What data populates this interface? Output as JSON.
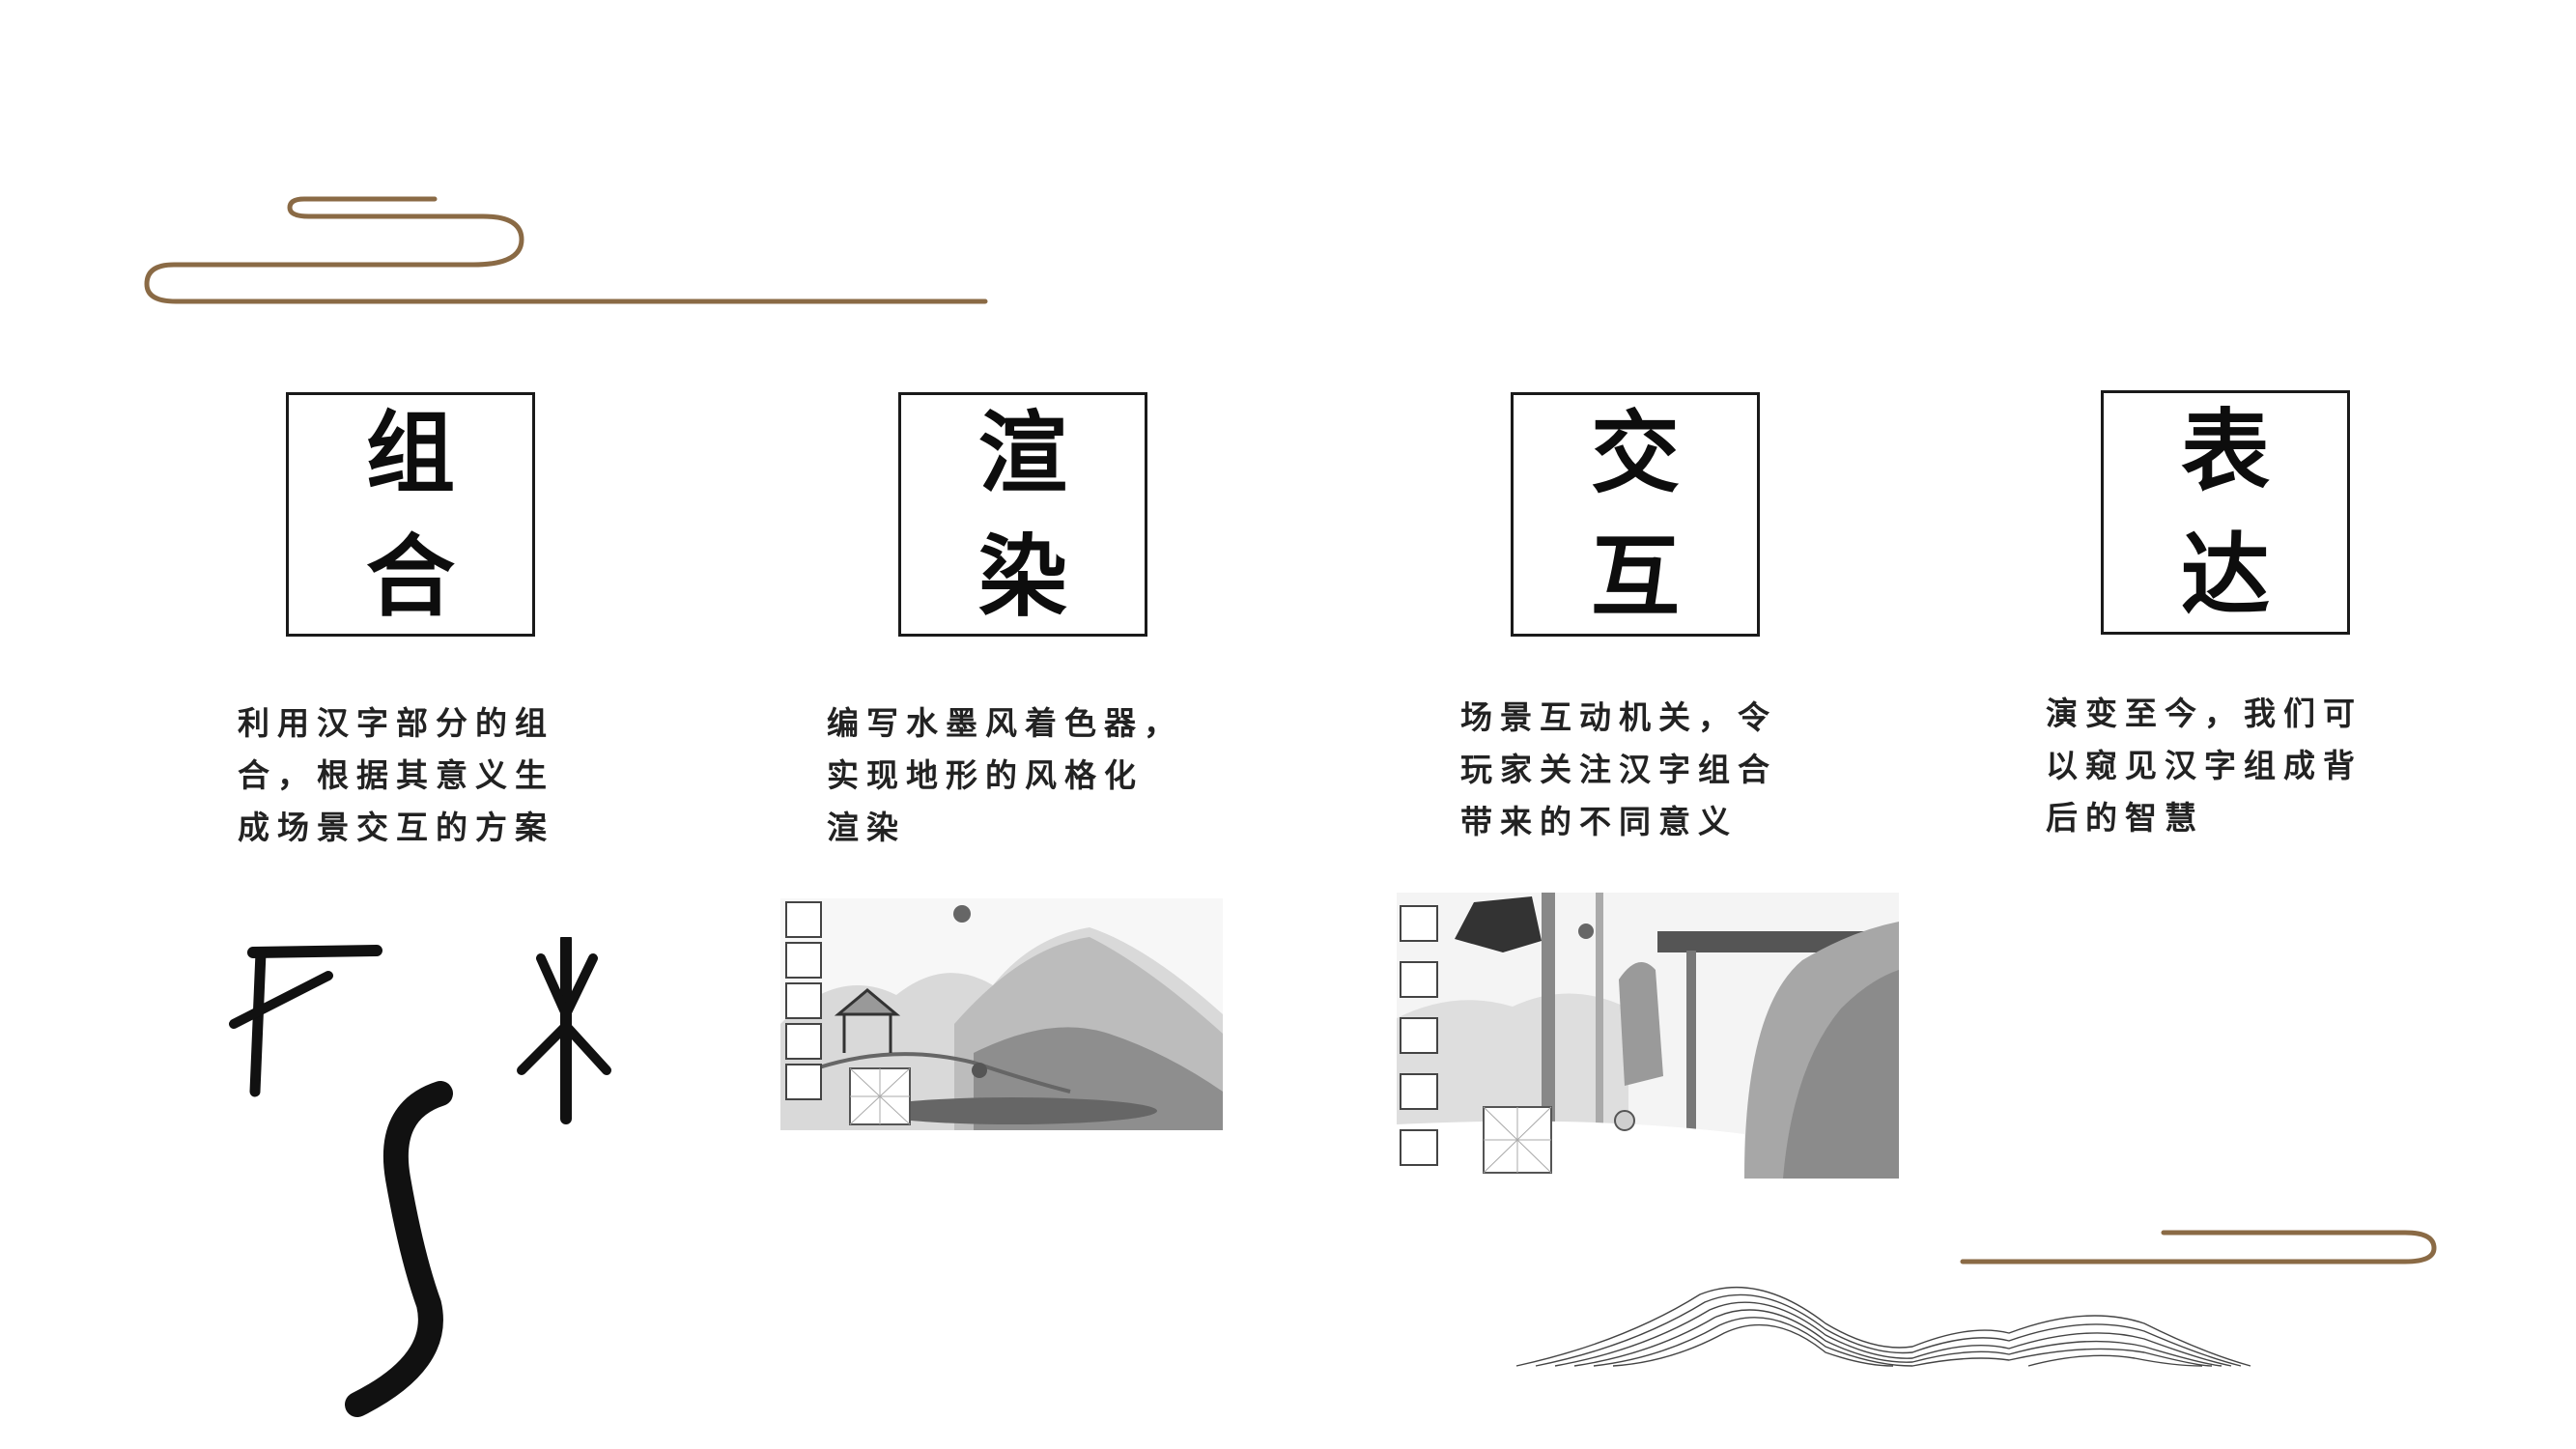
{
  "colors": {
    "accent_gold": "#8a6a45",
    "ink": "#111111"
  },
  "cards": [
    {
      "title_line1": "组",
      "title_line2": "合",
      "desc_lines": [
        "利用汉字部分的组",
        "合，根据其意义生",
        "成场景交互的方案"
      ]
    },
    {
      "title_line1": "渲",
      "title_line2": "染",
      "desc_lines": [
        "编写水墨风着色器，",
        "实现地形的风格化",
        "渲染"
      ]
    },
    {
      "title_line1": "交",
      "title_line2": "互",
      "desc_lines": [
        "场景互动机关，令",
        "玩家关注汉字组合",
        "带来的不同意义"
      ]
    },
    {
      "title_line1": "表",
      "title_line2": "达",
      "desc_lines": [
        "演变至今，我们可",
        "以窥见汉字组成背",
        "后的智慧"
      ]
    }
  ],
  "images": {
    "oracle": "oracle-bone-glyphs",
    "render": "ink-landscape-render-screenshot",
    "interact": "ink-scene-interaction-screenshot",
    "mountains": "line-art-mountains"
  }
}
